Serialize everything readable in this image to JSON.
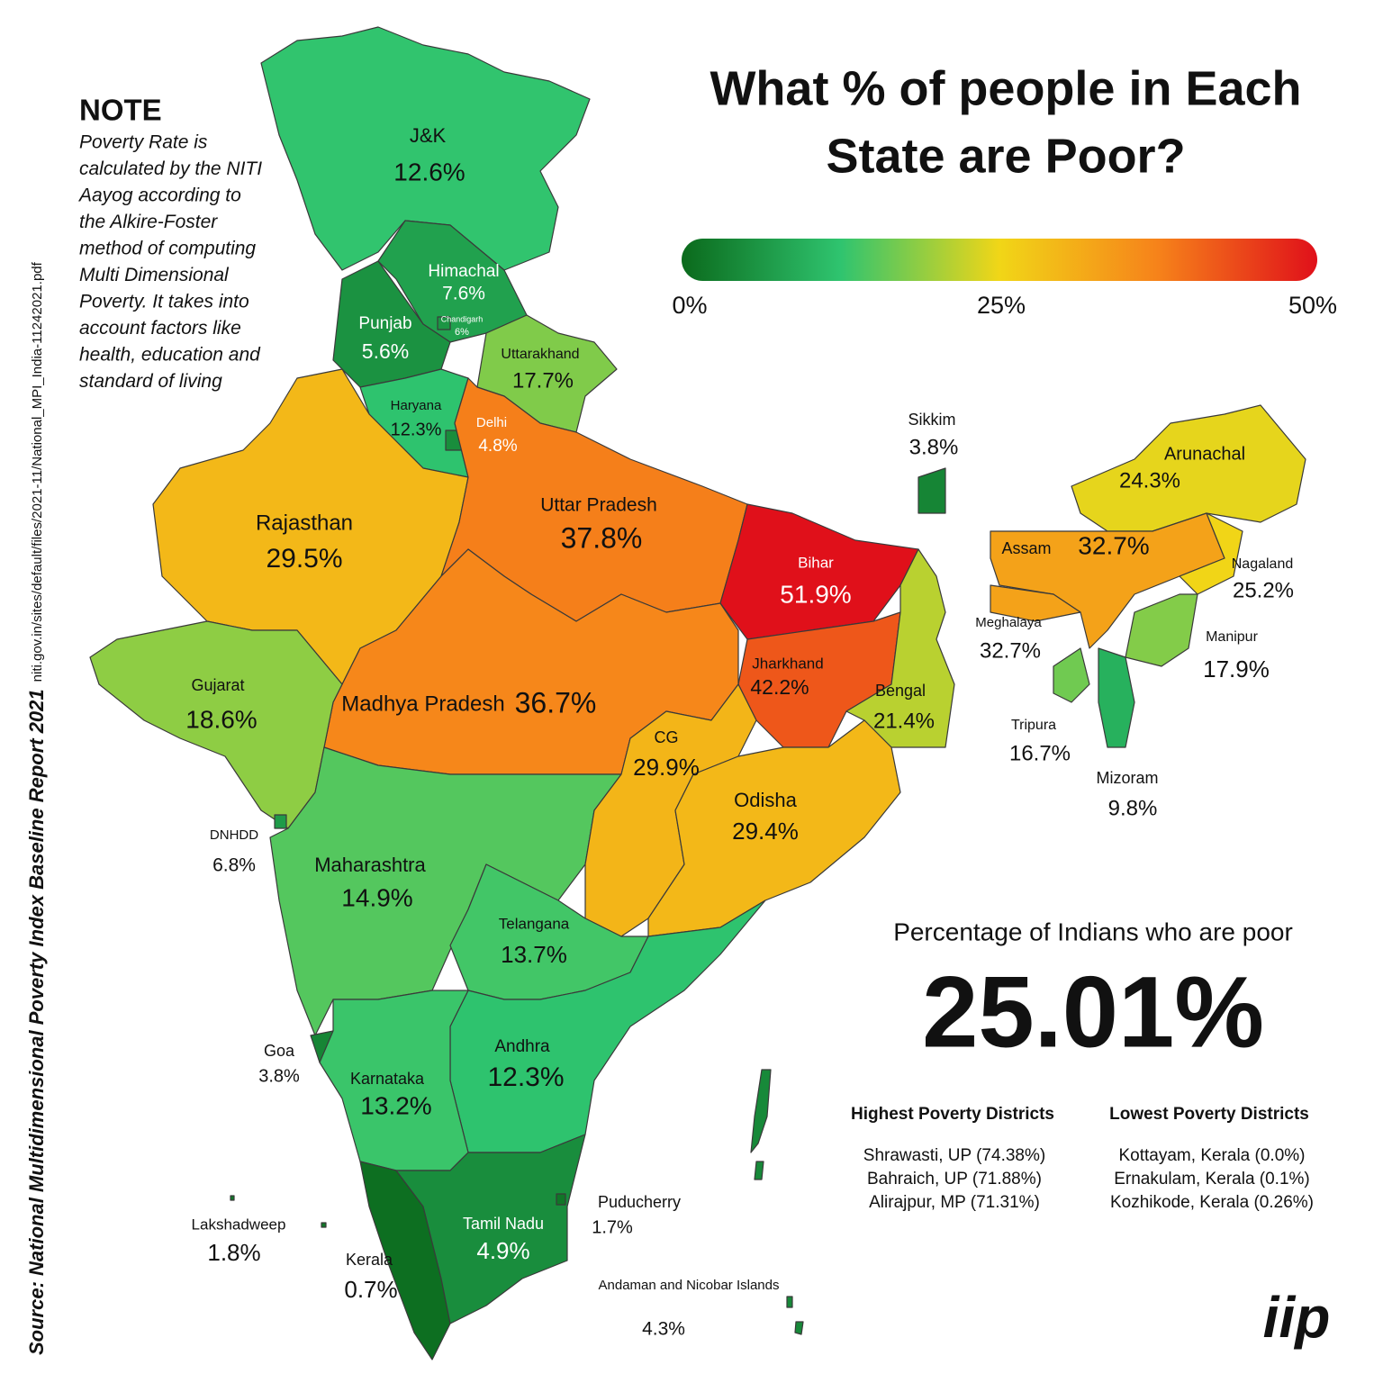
{
  "title_lines": [
    "What % of people in Each",
    "State are Poor?"
  ],
  "legend": {
    "ticks": [
      {
        "value": 0,
        "label": "0%"
      },
      {
        "value": 25,
        "label": "25%"
      },
      {
        "value": 50,
        "label": "50%"
      }
    ],
    "colors": [
      "#0b6a1c",
      "#2fc46f",
      "#f1d617",
      "#f6821a",
      "#e0101a"
    ]
  },
  "note": {
    "heading": "NOTE",
    "lines": [
      "Poverty Rate is",
      "calculated by the NITI",
      "Aayog according to",
      "the Alkire-Foster",
      "method of computing",
      "Multi Dimensional",
      "Poverty. It takes into",
      "account factors like",
      "health, education and",
      "standard of living"
    ]
  },
  "source": {
    "label": "Source: National Multidimensional Poverty Index Baseline Report 2021",
    "url": "niti.gov.in/sites/default/files/2021-11/National_MPI_India-11242021.pdf"
  },
  "states": [
    {
      "name": "J&K",
      "value": 12.6,
      "value_label": "12.6%"
    },
    {
      "name": "Himachal",
      "value": 7.6,
      "value_label": "7.6%"
    },
    {
      "name": "Punjab",
      "value": 5.6,
      "value_label": "5.6%"
    },
    {
      "name": "Chandigarh",
      "value": 6,
      "value_label": "6%"
    },
    {
      "name": "Haryana",
      "value": 12.3,
      "value_label": "12.3%"
    },
    {
      "name": "Delhi",
      "value": 4.8,
      "value_label": "4.8%"
    },
    {
      "name": "Uttarakhand",
      "value": 17.7,
      "value_label": "17.7%"
    },
    {
      "name": "Rajasthan",
      "value": 29.5,
      "value_label": "29.5%"
    },
    {
      "name": "Uttar Pradesh",
      "value": 37.8,
      "value_label": "37.8%"
    },
    {
      "name": "Bihar",
      "value": 51.9,
      "value_label": "51.9%"
    },
    {
      "name": "Sikkim",
      "value": 3.8,
      "value_label": "3.8%"
    },
    {
      "name": "Jharkhand",
      "value": 42.2,
      "value_label": "42.2%"
    },
    {
      "name": "Bengal",
      "value": 21.4,
      "value_label": "21.4%"
    },
    {
      "name": "Madhya Pradesh",
      "value": 36.7,
      "value_label": "36.7%"
    },
    {
      "name": "Gujarat",
      "value": 18.6,
      "value_label": "18.6%"
    },
    {
      "name": "DNHDD",
      "value": 6.8,
      "value_label": "6.8%"
    },
    {
      "name": "Maharashtra",
      "value": 14.9,
      "value_label": "14.9%"
    },
    {
      "name": "CG",
      "value": 29.9,
      "value_label": "29.9%"
    },
    {
      "name": "Odisha",
      "value": 29.4,
      "value_label": "29.4%"
    },
    {
      "name": "Telangana",
      "value": 13.7,
      "value_label": "13.7%"
    },
    {
      "name": "Andhra",
      "value": 12.3,
      "value_label": "12.3%"
    },
    {
      "name": "Goa",
      "value": 3.8,
      "value_label": "3.8%"
    },
    {
      "name": "Karnataka",
      "value": 13.2,
      "value_label": "13.2%"
    },
    {
      "name": "Kerala",
      "value": 0.7,
      "value_label": "0.7%"
    },
    {
      "name": "Tamil Nadu",
      "value": 4.9,
      "value_label": "4.9%"
    },
    {
      "name": "Puducherry",
      "value": 1.7,
      "value_label": "1.7%"
    },
    {
      "name": "Lakshadweep",
      "value": 1.8,
      "value_label": "1.8%"
    },
    {
      "name": "Andaman and Nicobar Islands",
      "value": 4.3,
      "value_label": "4.3%"
    },
    {
      "name": "Arunachal",
      "value": 24.3,
      "value_label": "24.3%"
    },
    {
      "name": "Assam",
      "value": 32.7,
      "value_label": "32.7%"
    },
    {
      "name": "Meghalaya",
      "value": 32.7,
      "value_label": "32.7%"
    },
    {
      "name": "Nagaland",
      "value": 25.2,
      "value_label": "25.2%"
    },
    {
      "name": "Manipur",
      "value": 17.9,
      "value_label": "17.9%"
    },
    {
      "name": "Tripura",
      "value": 16.7,
      "value_label": "16.7%"
    },
    {
      "name": "Mizoram",
      "value": 9.8,
      "value_label": "9.8%"
    }
  ],
  "summary": {
    "label": "Percentage of Indians who are poor",
    "value": "25.01%"
  },
  "districts": {
    "highest": {
      "heading": "Highest Poverty Districts",
      "items": [
        "Shrawasti, UP (74.38%)",
        "Bahraich, UP (71.88%)",
        "Alirajpur, MP (71.31%)"
      ]
    },
    "lowest": {
      "heading": "Lowest Poverty Districts",
      "items": [
        "Kottayam, Kerala (0.0%)",
        "Ernakulam, Kerala (0.1%)",
        "Kozhikode, Kerala (0.26%)"
      ]
    }
  },
  "logo": "iip"
}
